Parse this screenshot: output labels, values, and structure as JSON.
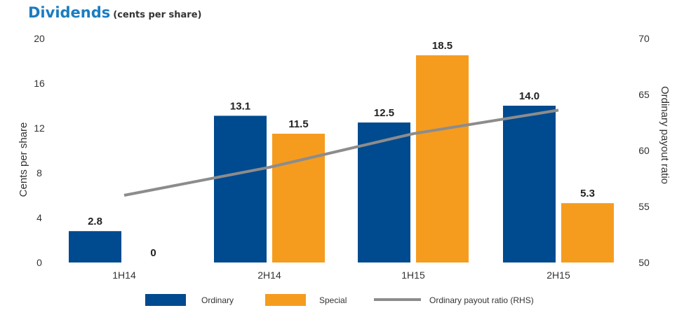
{
  "title": "Dividends",
  "subtitle": "(cents per share)",
  "chart_data": {
    "type": "bar",
    "categories": [
      "1H14",
      "2H14",
      "1H15",
      "2H15"
    ],
    "series": [
      {
        "name": "Ordinary",
        "values": [
          2.8,
          13.1,
          12.5,
          14.0
        ],
        "labels": [
          "2.8",
          "13.1",
          "12.5",
          "14.0"
        ],
        "color": "#004a8f"
      },
      {
        "name": "Special",
        "values": [
          0,
          11.5,
          18.5,
          5.3
        ],
        "labels": [
          "0",
          "11.5",
          "18.5",
          "5.3"
        ],
        "color": "#f59c1f"
      }
    ],
    "line_series": {
      "name": "Ordinary payout ratio (RHS)",
      "values": [
        56,
        58.5,
        61.5,
        63.6
      ],
      "color": "#8c8c8c",
      "axis": "right"
    },
    "ylabel": "Cents per share",
    "y2label": "Ordinary payout ratio",
    "ylim": [
      0,
      20
    ],
    "yticks": [
      0,
      4,
      8,
      12,
      16,
      20
    ],
    "y2lim": [
      50,
      70
    ],
    "y2ticks": [
      50,
      55,
      60,
      65,
      70
    ],
    "grid": false,
    "legend_position": "bottom"
  }
}
